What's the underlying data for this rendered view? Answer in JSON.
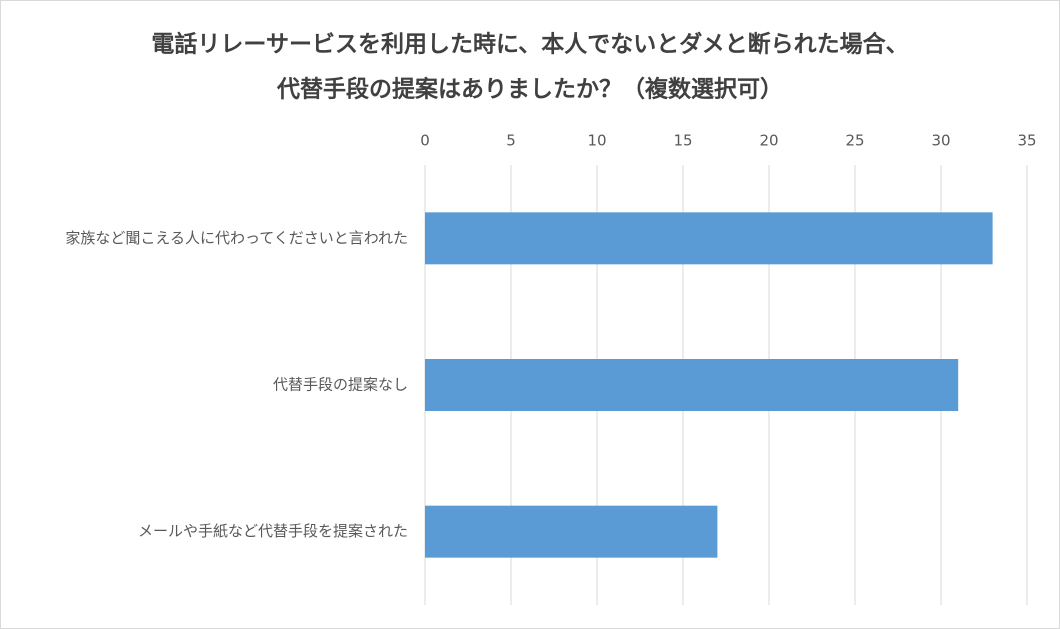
{
  "chart_data": {
    "type": "barh",
    "title": [
      "電話リレーサービスを利用した時に、本人でないとダメと断られた場合、",
      "代替手段の提案はありましたか？（複数選択可）"
    ],
    "categories": [
      "家族など聞こえる人に代わってくださいと言われた",
      "代替手段の提案なし",
      "メールや手紙など代替手段を提案された"
    ],
    "values": [
      33,
      31,
      17
    ],
    "color": "#5b9bd5",
    "xlim": [
      0,
      35
    ],
    "xticks": [
      0,
      5,
      10,
      15,
      20,
      25,
      30,
      35
    ],
    "grid": true
  }
}
